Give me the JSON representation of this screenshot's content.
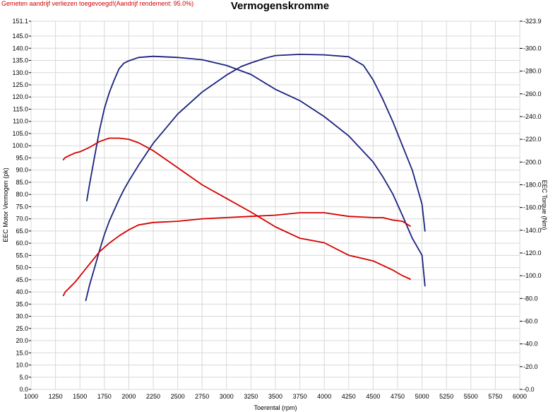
{
  "header": {
    "note": "Gemeten aandrijf verliezen toegevoegd!(Aandrijf rendement: 95.0%)",
    "title": "Vermogenskromme"
  },
  "chart_data": {
    "type": "line",
    "title": "Vermogenskromme",
    "xlabel": "Toerental (rpm)",
    "ylabel_left": "EEC Motor Vermogen (pk)",
    "ylabel_right": "EEC Torque (Nm)",
    "xlim": [
      1000,
      6000
    ],
    "ylim_left": [
      0,
      151.1
    ],
    "ylim_right": [
      0,
      323.9
    ],
    "grid": true,
    "x_ticks": [
      "1000",
      "1250",
      "1500",
      "1750",
      "2000",
      "2250",
      "2500",
      "2750",
      "3000",
      "3250",
      "3500",
      "3750",
      "4000",
      "4250",
      "4500",
      "4750",
      "5000",
      "5250",
      "5500",
      "5750",
      "6000"
    ],
    "y_left_ticks": [
      "0.0",
      "5.0",
      "10.0",
      "15.0",
      "20.0",
      "25.0",
      "30.0",
      "35.0",
      "40.0",
      "45.0",
      "50.0",
      "55.0",
      "60.0",
      "65.0",
      "70.0",
      "75.0",
      "80.0",
      "85.0",
      "90.0",
      "95.0",
      "100.0",
      "105.0",
      "110.0",
      "115.0",
      "120.0",
      "125.0",
      "130.0",
      "135.0",
      "140.0",
      "145.0",
      "151.1"
    ],
    "y_right_ticks": [
      "0.0",
      "20.0",
      "40.0",
      "60.0",
      "80.0",
      "100.0",
      "120.0",
      "140.0",
      "160.0",
      "180.0",
      "200.0",
      "220.0",
      "240.0",
      "260.0",
      "280.0",
      "300.0",
      "323.9"
    ],
    "series": [
      {
        "axis": "left",
        "color": "#1a237e",
        "x": [
          1560,
          1600,
          1650,
          1700,
          1750,
          1800,
          1850,
          1900,
          1950,
          2000,
          2100,
          2250,
          2500,
          2750,
          3000,
          3150,
          3250,
          3400,
          3500,
          3750,
          4000,
          4250,
          4400,
          4500,
          4600,
          4700,
          4800,
          4900,
          5000,
          5030
        ],
        "values": [
          36.5,
          43,
          50,
          57,
          63.5,
          69,
          73.5,
          78,
          82,
          85.5,
          92,
          101,
          113,
          122,
          129,
          132.5,
          134,
          136,
          137,
          137.5,
          137.3,
          136.5,
          133,
          127,
          119,
          110,
          100,
          90,
          76,
          65
        ]
      },
      {
        "axis": "right",
        "color": "#1a237e",
        "x": [
          1570,
          1600,
          1650,
          1700,
          1750,
          1800,
          1850,
          1900,
          1950,
          2000,
          2100,
          2250,
          2500,
          2750,
          3000,
          3250,
          3500,
          3750,
          4000,
          4250,
          4500,
          4600,
          4700,
          4800,
          4900,
          5000,
          5030
        ],
        "values": [
          166,
          181,
          205,
          228,
          247,
          261,
          272,
          282,
          287,
          289,
          292,
          293,
          292,
          290,
          285,
          277,
          264,
          254,
          240,
          223,
          200,
          187,
          172,
          153,
          133,
          118,
          91
        ]
      },
      {
        "axis": "left",
        "color": "#d40000",
        "x": [
          1330,
          1350,
          1400,
          1450,
          1500,
          1550,
          1600,
          1650,
          1700,
          1800,
          1900,
          2000,
          2100,
          2250,
          2500,
          2750,
          3000,
          3250,
          3500,
          3750,
          4000,
          4250,
          4500,
          4600,
          4700,
          4800,
          4880
        ],
        "values": [
          38.5,
          40,
          42,
          44,
          46.5,
          49,
          51.5,
          54,
          56.5,
          60,
          63,
          65.5,
          67.5,
          68.5,
          69,
          70,
          70.5,
          71,
          71.5,
          72.5,
          72.5,
          71,
          70.5,
          70.5,
          69.5,
          69,
          67
        ]
      },
      {
        "axis": "right",
        "color": "#d40000",
        "x": [
          1330,
          1350,
          1400,
          1450,
          1500,
          1600,
          1700,
          1800,
          1900,
          2000,
          2100,
          2250,
          2500,
          2750,
          3000,
          3250,
          3500,
          3750,
          4000,
          4250,
          4500,
          4700,
          4800,
          4880
        ],
        "values": [
          202,
          204,
          206,
          208,
          209,
          213,
          218,
          221,
          221,
          220,
          217,
          210,
          195,
          180,
          168,
          156,
          143,
          133,
          129,
          118,
          113,
          105,
          100,
          97
        ]
      }
    ]
  }
}
